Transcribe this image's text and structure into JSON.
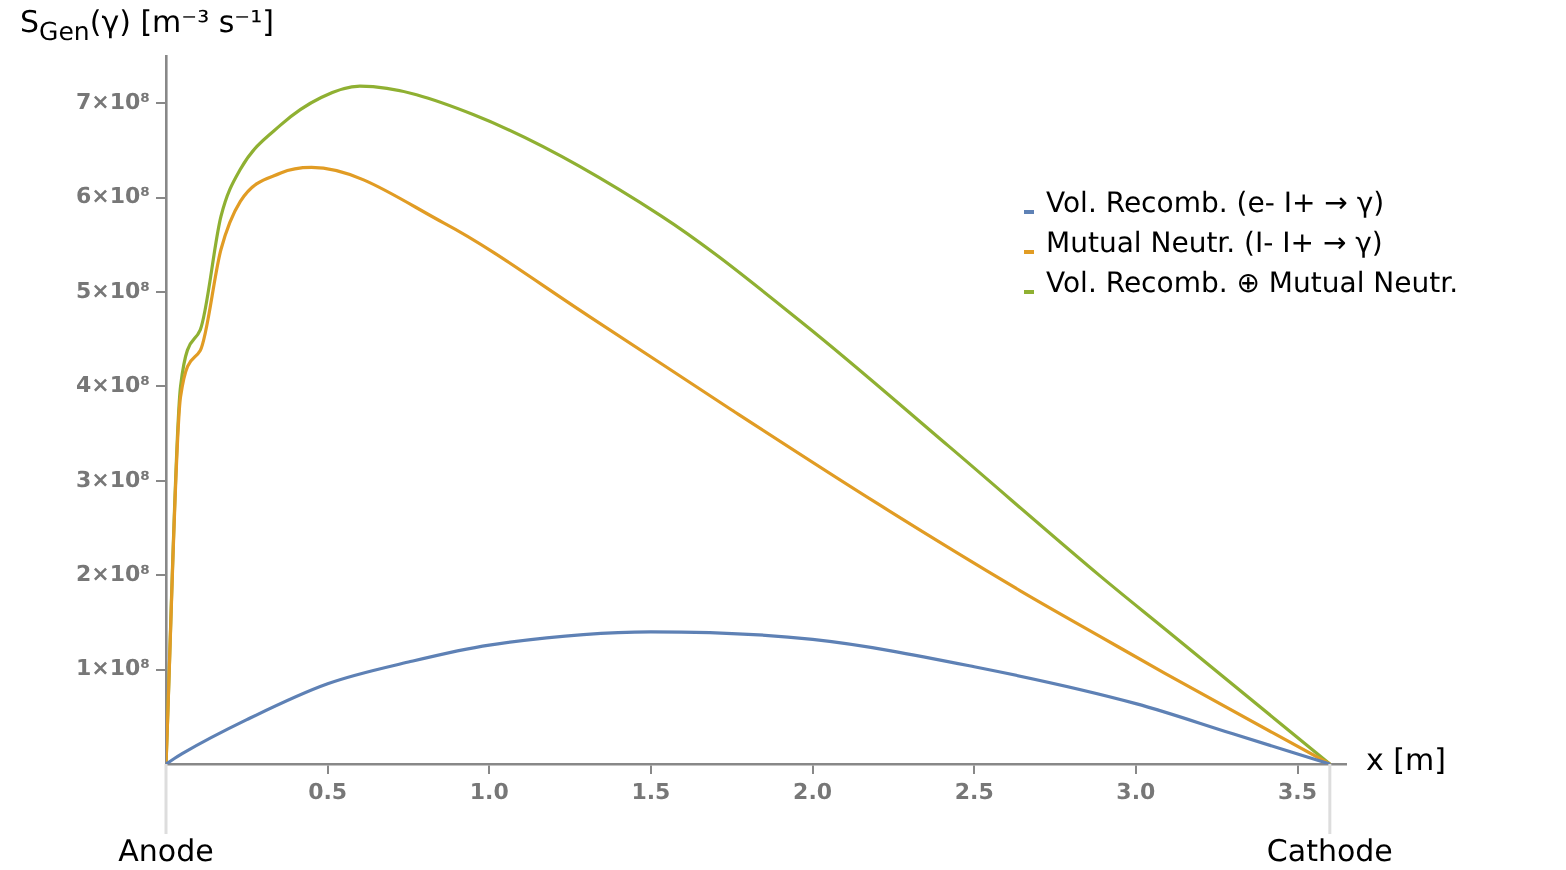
{
  "chart_data": {
    "type": "line",
    "ylabel": "S$_{Gen}$(γ) [m⁻³ s⁻¹]",
    "xlabel": "x [m]",
    "xlim": [
      0,
      3.65
    ],
    "xticks": [
      0.5,
      {
        "value": 1,
        "label": "1.0"
      },
      1.5,
      {
        "value": 2,
        "label": "2.0"
      },
      2.5,
      {
        "value": 3,
        "label": "3.0"
      },
      3.5
    ],
    "ylim": [
      0,
      750000000
    ],
    "yticks": [
      {
        "value": 100000000,
        "label": "1×10⁸"
      },
      {
        "value": 200000000,
        "label": "2×10⁸"
      },
      {
        "value": 300000000,
        "label": "3×10⁸"
      },
      {
        "value": 400000000,
        "label": "4×10⁸"
      },
      {
        "value": 500000000,
        "label": "5×10⁸"
      },
      {
        "value": 600000000,
        "label": "6×10⁸"
      },
      {
        "value": 700000000,
        "label": "7×10⁸"
      }
    ],
    "grid": false,
    "legend": "right",
    "annotations": [
      {
        "text": "Anode",
        "x": 0,
        "y": 0
      },
      {
        "text": "Cathode",
        "x": 3.6,
        "y": 0
      }
    ],
    "series": [
      {
        "name": "Vol. Recomb. (e- I+ → γ)",
        "color": "#5e81b5",
        "x": [
          0,
          0.05,
          0.25,
          0.5,
          0.75,
          1.0,
          1.5,
          2.0,
          2.5,
          3.0,
          3.3,
          3.6
        ],
        "values": [
          0,
          11000000,
          47000000,
          85000000,
          108000000,
          126000000,
          140000000,
          132000000,
          103000000,
          64000000,
          32000000,
          0
        ]
      },
      {
        "name": "Mutual Neutr. (I- I+ → γ)",
        "color": "#e19c24",
        "x": [
          0,
          0.045,
          0.106,
          0.17,
          0.23,
          0.355,
          0.45,
          0.86,
          1.31,
          1.75,
          2.2,
          2.64,
          2.89,
          3.09,
          3.6
        ],
        "values": [
          0,
          389000000,
          438000000,
          545000000,
          596000000,
          626000000,
          632000000,
          573000000,
          474000000,
          375000000,
          276000000,
          184000000,
          135000000,
          96000000,
          0
        ]
      },
      {
        "name": "Vol. Recomb. ⊕ Mutual Neutr.",
        "color": "#8fb032",
        "x": [
          0,
          0.045,
          0.106,
          0.17,
          0.23,
          0.355,
          0.48,
          0.6,
          0.95,
          1.53,
          1.97,
          2.42,
          2.89,
          3.09,
          3.6
        ],
        "values": [
          0,
          400000000,
          460000000,
          580000000,
          630000000,
          677000000,
          706000000,
          718000000,
          688000000,
          581000000,
          467000000,
          337000000,
          199000000,
          143000000,
          0
        ]
      }
    ]
  }
}
